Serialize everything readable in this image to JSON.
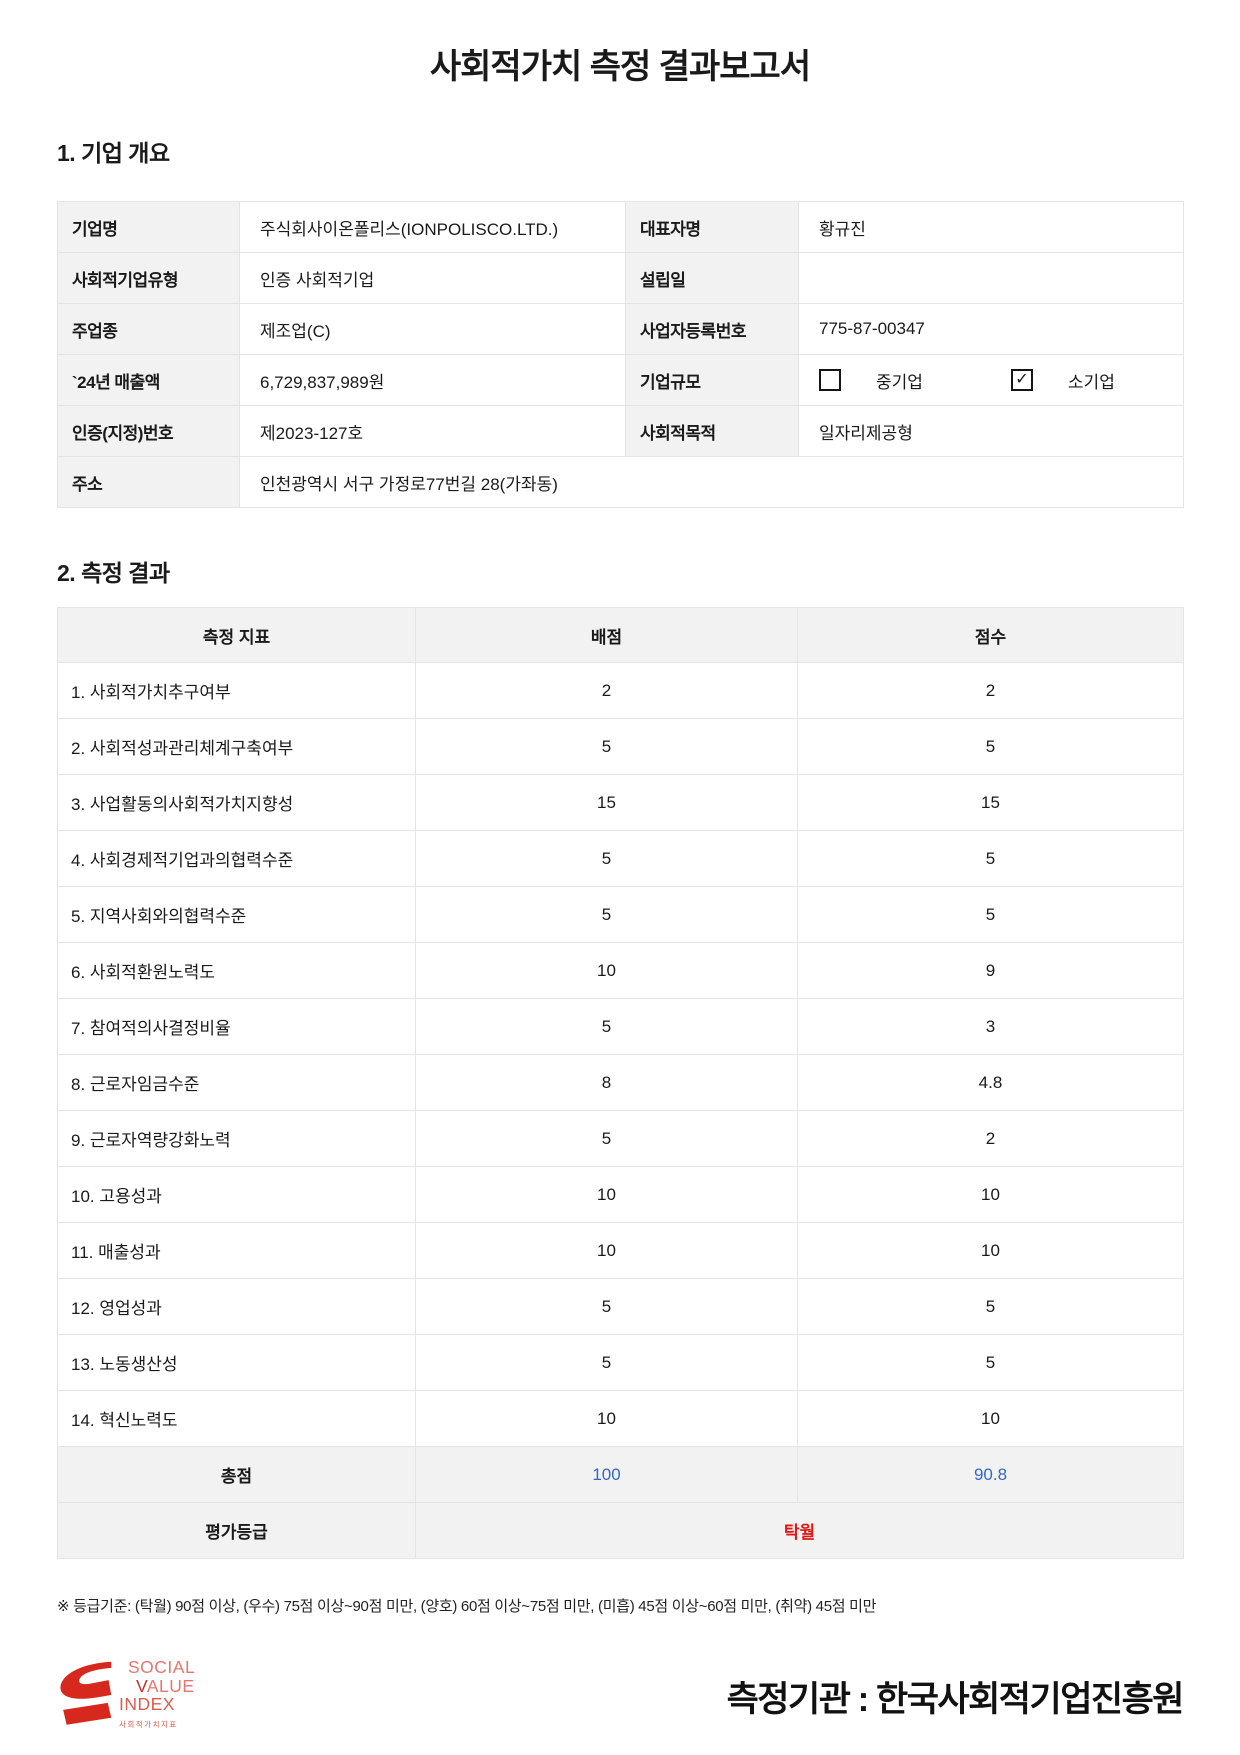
{
  "page": {
    "title": "사회적가치 측정 결과보고서"
  },
  "icons": {
    "check_glyph": "✓"
  },
  "company": {
    "heading": "1. 기업 개요",
    "rows": [
      {
        "label": "기업명",
        "value": "주식회사이온폴리스(IONPOLISCO.LTD.)",
        "label2": "대표자명",
        "value2": "황규진"
      },
      {
        "label": "사회적기업유형",
        "value": "인증 사회적기업",
        "label2": "설립일",
        "value2": ""
      },
      {
        "label": "주업종",
        "value": "제조업(C)",
        "label2": "사업자등록번호",
        "value2": "775-87-00347"
      },
      {
        "label": "`24년 매출액",
        "value": "6,729,837,989원",
        "label2": "기업규모"
      },
      {
        "label": "인증(지정)번호",
        "value": "제2023-127호",
        "label2": "사회적목적",
        "value2": "일자리제공형"
      },
      {
        "label": "주소",
        "value": "인천광역시 서구 가정로77번길 28(가좌동)"
      }
    ],
    "size_options": [
      {
        "label": "중기업",
        "checked": false
      },
      {
        "label": "소기업",
        "checked": true
      }
    ]
  },
  "measurement": {
    "heading": "2. 측정 결과",
    "columns": [
      "측정 지표",
      "배점",
      "점수"
    ],
    "rows": [
      {
        "name": "1. 사회적가치추구여부",
        "max": "2",
        "score": "2"
      },
      {
        "name": "2. 사회적성과관리체계구축여부",
        "max": "5",
        "score": "5"
      },
      {
        "name": "3. 사업활동의사회적가치지향성",
        "max": "15",
        "score": "15"
      },
      {
        "name": "4. 사회경제적기업과의협력수준",
        "max": "5",
        "score": "5"
      },
      {
        "name": "5. 지역사회와의협력수준",
        "max": "5",
        "score": "5"
      },
      {
        "name": "6. 사회적환원노력도",
        "max": "10",
        "score": "9"
      },
      {
        "name": "7. 참여적의사결정비율",
        "max": "5",
        "score": "3"
      },
      {
        "name": "8. 근로자임금수준",
        "max": "8",
        "score": "4.8"
      },
      {
        "name": "9. 근로자역량강화노력",
        "max": "5",
        "score": "2"
      },
      {
        "name": "10. 고용성과",
        "max": "10",
        "score": "10"
      },
      {
        "name": "11. 매출성과",
        "max": "10",
        "score": "10"
      },
      {
        "name": "12. 영업성과",
        "max": "5",
        "score": "5"
      },
      {
        "name": "13. 노동생산성",
        "max": "5",
        "score": "5"
      },
      {
        "name": "14. 혁신노력도",
        "max": "10",
        "score": "10"
      }
    ],
    "total": {
      "label": "총점",
      "max": "100",
      "score": "90.8"
    },
    "grade": {
      "label": "평가등급",
      "value": "탁월"
    }
  },
  "footnote": "※ 등급기준: (탁월) 90점 이상, (우수) 75점 이상~90점 미만, (양호) 60점 이상~75점 미만, (미흡) 45점 이상~60점 미만, (취약) 45점 미만",
  "footer": {
    "logo": {
      "lines": [
        "SOCIAL",
        "VALUE",
        "INDEX"
      ],
      "subtext": "사회적가치지표"
    },
    "agency": "측정기관 : 한국사회적기업진흥원",
    "logo_color": "#d7281e"
  }
}
